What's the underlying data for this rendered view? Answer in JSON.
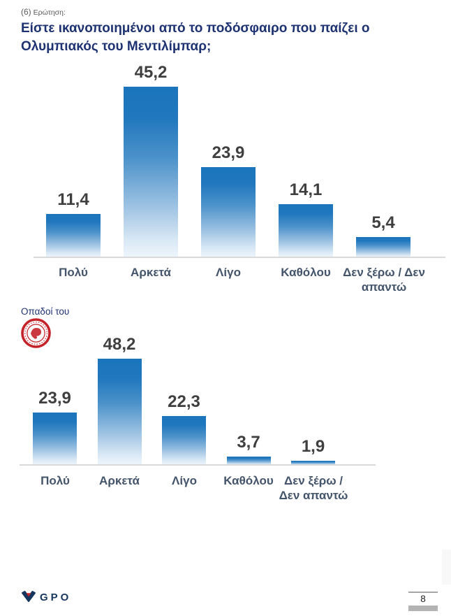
{
  "header": {
    "question_number": "(6)",
    "question_word": "Ερώτηση:",
    "title": "Είστε ικανοποιημένοι από το ποδόσφαιρο που παίζει ο Ολυμπιακός του Μεντιλίμπαρ;"
  },
  "chart_data": [
    {
      "type": "bar",
      "categories": [
        "Πολύ",
        "Αρκετά",
        "Λίγο",
        "Καθόλου",
        "Δεν ξέρω / Δεν απαντώ"
      ],
      "values": [
        11.4,
        45.2,
        23.9,
        14.1,
        5.4
      ],
      "value_labels": [
        "11,4",
        "45,2",
        "23,9",
        "14,1",
        "5,4"
      ],
      "ylim": [
        0,
        50
      ],
      "grid": false,
      "legend": "none",
      "bar_gradient_top": "#1b75bc",
      "bar_gradient_bottom": "#eef5fb"
    },
    {
      "type": "bar",
      "group_label": "Οπαδοί του",
      "group_logo": "olympiacos-emblem",
      "categories": [
        "Πολύ",
        "Αρκετά",
        "Λίγο",
        "Καθόλου",
        "Δεν ξέρω / Δεν απαντώ"
      ],
      "values": [
        23.9,
        48.2,
        22.3,
        3.7,
        1.9
      ],
      "value_labels": [
        "23,9",
        "48,2",
        "22,3",
        "3,7",
        "1,9"
      ],
      "ylim": [
        0,
        50
      ],
      "grid": false,
      "legend": "none",
      "bar_gradient_top": "#1b75bc",
      "bar_gradient_bottom": "#eef5fb"
    }
  ],
  "footer": {
    "brand": "GPO",
    "page_number": "8"
  },
  "colors": {
    "title_navy": "#1e3272",
    "value_label": "#3f3f3f",
    "category_label": "#44546a",
    "bar_top": "#1b75bc",
    "baseline_gray": "#d9d9d9",
    "brand_navy": "#17365d",
    "club_red": "#c4232a"
  }
}
